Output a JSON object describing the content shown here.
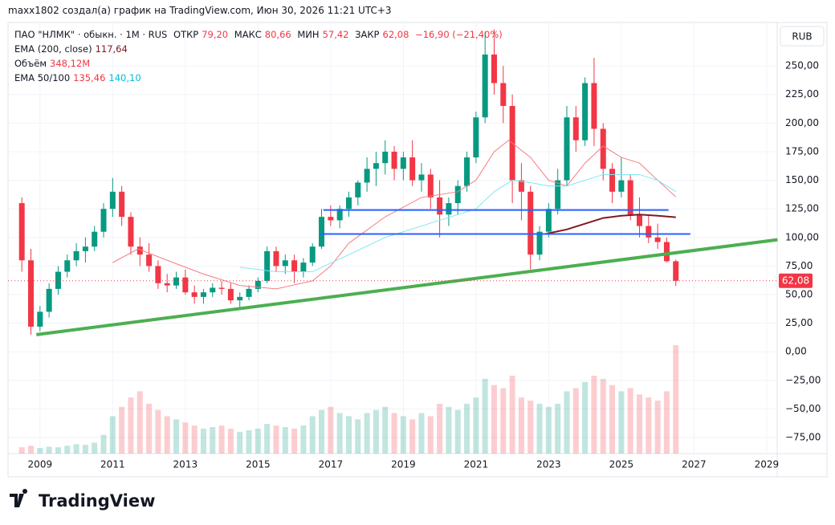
{
  "header": {
    "caption": "maxx1802 создал(а) график на TradingView.com, Июн 30, 2026 11:21 UTC+3"
  },
  "footer": {
    "brand": "TradingView"
  },
  "chart_data": {
    "type": "candlestick",
    "currency": "RUB",
    "legend": {
      "symbol": "ПАО \"НЛМК\" · обыкн. · 1M · RUS",
      "open_label": "ОТКР",
      "open": "79,20",
      "high_label": "МАКС",
      "high": "80,66",
      "low_label": "МИН",
      "low": "57,42",
      "close_label": "ЗАКР",
      "close": "62,08",
      "change": "−16,90 (−21,40%)",
      "ema200_label": "EMA (200, close)",
      "ema200": "117,64",
      "volume_label": "Объём",
      "volume": "348,12M",
      "ema50_100_label": "EMA 50/100",
      "ema50": "135,46",
      "ema100": "140,10"
    },
    "last_price_label": "62,08",
    "up_color": "#089981",
    "down_color": "#f23645",
    "x": [
      2008.5,
      2008.75,
      2009.0,
      2009.25,
      2009.5,
      2009.75,
      2010.0,
      2010.25,
      2010.5,
      2010.75,
      2011.0,
      2011.25,
      2011.5,
      2011.75,
      2012.0,
      2012.25,
      2012.5,
      2012.75,
      2013.0,
      2013.25,
      2013.5,
      2013.75,
      2014.0,
      2014.25,
      2014.5,
      2014.75,
      2015.0,
      2015.25,
      2015.5,
      2015.75,
      2016.0,
      2016.25,
      2016.5,
      2016.75,
      2017.0,
      2017.25,
      2017.5,
      2017.75,
      2018.0,
      2018.25,
      2018.5,
      2018.75,
      2019.0,
      2019.25,
      2019.5,
      2019.75,
      2020.0,
      2020.25,
      2020.5,
      2020.75,
      2021.0,
      2021.25,
      2021.5,
      2021.75,
      2022.0,
      2022.25,
      2022.5,
      2022.75,
      2023.0,
      2023.25,
      2023.5,
      2023.75,
      2024.0,
      2024.25,
      2024.5,
      2024.75,
      2025.0,
      2025.25,
      2025.5,
      2025.75,
      2026.0,
      2026.25,
      2026.5
    ],
    "open": [
      130,
      80,
      22,
      35,
      55,
      70,
      80,
      88,
      92,
      105,
      125,
      140,
      118,
      92,
      85,
      75,
      60,
      58,
      65,
      52,
      48,
      52,
      56,
      55,
      45,
      48,
      55,
      62,
      88,
      75,
      80,
      70,
      78,
      92,
      118,
      115,
      125,
      135,
      148,
      160,
      165,
      175,
      160,
      170,
      150,
      155,
      135,
      120,
      130,
      145,
      170,
      205,
      260,
      235,
      215,
      150,
      140,
      85,
      105,
      125,
      150,
      205,
      185,
      235,
      195,
      160,
      140,
      150,
      120,
      110,
      100,
      96,
      79.2
    ],
    "high": [
      135,
      90,
      40,
      60,
      75,
      85,
      95,
      100,
      110,
      130,
      152,
      145,
      122,
      100,
      95,
      80,
      68,
      70,
      72,
      58,
      55,
      60,
      62,
      60,
      52,
      58,
      65,
      92,
      92,
      85,
      85,
      82,
      95,
      125,
      128,
      128,
      140,
      150,
      170,
      175,
      185,
      180,
      175,
      185,
      165,
      160,
      150,
      135,
      150,
      175,
      210,
      280,
      282,
      250,
      225,
      165,
      145,
      110,
      130,
      160,
      215,
      215,
      240,
      257,
      200,
      165,
      170,
      155,
      135,
      120,
      112,
      100,
      80.66
    ],
    "low": [
      70,
      15,
      18,
      30,
      50,
      65,
      75,
      78,
      88,
      100,
      118,
      110,
      85,
      75,
      70,
      55,
      52,
      55,
      50,
      42,
      42,
      48,
      50,
      42,
      38,
      45,
      52,
      60,
      70,
      68,
      60,
      65,
      75,
      90,
      110,
      108,
      118,
      128,
      140,
      145,
      155,
      150,
      150,
      145,
      140,
      125,
      100,
      110,
      120,
      140,
      165,
      200,
      225,
      200,
      130,
      115,
      72,
      80,
      100,
      120,
      145,
      175,
      180,
      180,
      150,
      130,
      135,
      115,
      100,
      95,
      90,
      78,
      57.42
    ],
    "close": [
      80,
      22,
      35,
      55,
      70,
      80,
      88,
      92,
      105,
      125,
      140,
      118,
      92,
      85,
      75,
      60,
      58,
      65,
      52,
      48,
      52,
      56,
      55,
      45,
      48,
      55,
      62,
      88,
      75,
      80,
      70,
      78,
      92,
      118,
      115,
      125,
      135,
      148,
      160,
      165,
      175,
      160,
      170,
      150,
      155,
      135,
      120,
      130,
      145,
      170,
      205,
      260,
      235,
      215,
      150,
      140,
      85,
      105,
      125,
      150,
      205,
      185,
      235,
      195,
      160,
      140,
      150,
      120,
      110,
      100,
      96,
      79.2,
      62.08
    ],
    "volume": [
      20,
      25,
      18,
      22,
      20,
      25,
      30,
      28,
      35,
      60,
      120,
      150,
      180,
      200,
      160,
      140,
      120,
      110,
      100,
      90,
      80,
      85,
      90,
      80,
      70,
      75,
      80,
      95,
      90,
      85,
      80,
      90,
      120,
      140,
      150,
      130,
      120,
      110,
      130,
      140,
      150,
      130,
      120,
      110,
      130,
      120,
      160,
      150,
      140,
      160,
      180,
      240,
      220,
      210,
      250,
      180,
      170,
      160,
      150,
      160,
      200,
      210,
      230,
      250,
      240,
      220,
      200,
      210,
      190,
      180,
      170,
      200,
      348.12
    ],
    "ema": [
      {
        "name": "EMA 50",
        "color": "#f77c80",
        "x": [
          2011.0,
          2011.7,
          2012.5,
          2013.5,
          2014.5,
          2015.5,
          2016.5,
          2017.0,
          2017.5,
          2018.5,
          2019.5,
          2020.5,
          2021.0,
          2021.5,
          2021.9,
          2022.5,
          2023.0,
          2023.5,
          2024.0,
          2024.5,
          2025.0,
          2025.5,
          2026.0,
          2026.5
        ],
        "values": [
          78,
          90,
          80,
          68,
          58,
          55,
          62,
          75,
          95,
          118,
          135,
          140,
          150,
          175,
          185,
          170,
          150,
          145,
          165,
          180,
          170,
          165,
          150,
          135.46
        ]
      },
      {
        "name": "EMA 100",
        "color": "#7ee8f2",
        "x": [
          2014.5,
          2015.5,
          2016.5,
          2017.5,
          2018.5,
          2019.5,
          2020.5,
          2021.0,
          2021.5,
          2022.0,
          2022.5,
          2023.0,
          2023.5,
          2024.0,
          2024.5,
          2025.0,
          2025.5,
          2026.0,
          2026.5
        ],
        "values": [
          74,
          70,
          70,
          85,
          100,
          110,
          120,
          125,
          140,
          150,
          148,
          145,
          145,
          150,
          155,
          155,
          155,
          150,
          140.1
        ]
      },
      {
        "name": "EMA 200",
        "color": "#801922",
        "x": [
          2022.9,
          2023.5,
          2024.0,
          2024.5,
          2025.0,
          2025.5,
          2026.0,
          2026.5
        ],
        "values": [
          103,
          107,
          112,
          117,
          119,
          120,
          119,
          117.64
        ]
      }
    ],
    "drawings": [
      {
        "color": "#4caf50",
        "width": 4,
        "x": [
          2008.9,
          2029.3
        ],
        "values": [
          15,
          98
        ]
      },
      {
        "color": "#2962ff",
        "width": 2,
        "x": [
          2016.8,
          2026.3
        ],
        "values": [
          124,
          124
        ]
      },
      {
        "color": "#2962ff",
        "width": 2,
        "x": [
          2016.7,
          2026.9
        ],
        "values": [
          103,
          103
        ]
      }
    ],
    "xlim": [
      2008.12,
      2029.29
    ],
    "ylim": [
      -89,
      288
    ],
    "xticks": [
      2009,
      2011,
      2013,
      2015,
      2017,
      2019,
      2021,
      2023,
      2025,
      2027,
      2029
    ],
    "yticks": [
      {
        "value": -75,
        "label": "−75,00"
      },
      {
        "value": -50,
        "label": "−50,00"
      },
      {
        "value": -25,
        "label": "−25,00"
      },
      {
        "value": 0,
        "label": "0,00"
      },
      {
        "value": 25,
        "label": "25,00"
      },
      {
        "value": 50,
        "label": "50,00"
      },
      {
        "value": 75,
        "label": "75,00"
      },
      {
        "value": 100,
        "label": "100,00"
      },
      {
        "value": 125,
        "label": "125,00"
      },
      {
        "value": 150,
        "label": "150,00"
      },
      {
        "value": 175,
        "label": "175,00"
      },
      {
        "value": 200,
        "label": "200,00"
      },
      {
        "value": 225,
        "label": "225,00"
      },
      {
        "value": 250,
        "label": "250,00"
      }
    ],
    "grid": true
  }
}
